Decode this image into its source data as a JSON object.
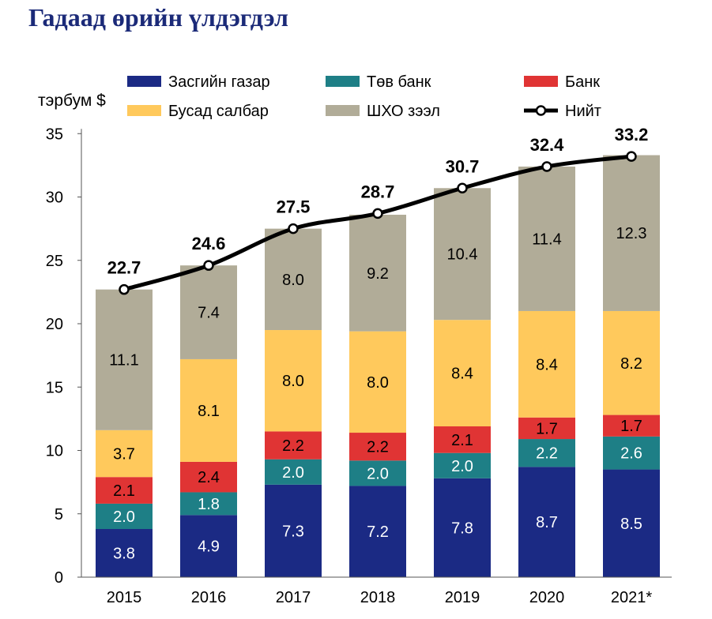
{
  "title": "Гадаад өрийн үлдэгдэл",
  "chart_data": {
    "type": "bar",
    "stacked": true,
    "ylabel": "тэрбум $",
    "ylim": [
      0,
      35
    ],
    "yticks": [
      0,
      5,
      10,
      15,
      20,
      25,
      30,
      35
    ],
    "grid": false,
    "legend_position": "top",
    "categories": [
      "2015",
      "2016",
      "2017",
      "2018",
      "2019",
      "2020",
      "2021*"
    ],
    "series": [
      {
        "name": "Засгийн газар",
        "color": "#1b2a84",
        "text_color": "#ffffff",
        "values": [
          3.8,
          4.9,
          7.3,
          7.2,
          7.8,
          8.7,
          8.5
        ]
      },
      {
        "name": "Төв банк",
        "color": "#1e7f86",
        "text_color": "#ffffff",
        "values": [
          2.0,
          1.8,
          2.0,
          2.0,
          2.0,
          2.2,
          2.6
        ]
      },
      {
        "name": "Банк",
        "color": "#e03434",
        "text_color": "#000000",
        "values": [
          2.1,
          2.4,
          2.2,
          2.2,
          2.1,
          1.7,
          1.7
        ]
      },
      {
        "name": "Бусад салбар",
        "color": "#ffc95c",
        "text_color": "#000000",
        "values": [
          3.7,
          8.1,
          8.0,
          8.0,
          8.4,
          8.4,
          8.2
        ]
      },
      {
        "name": "ШХО зээл",
        "color": "#b1ac98",
        "text_color": "#000000",
        "values": [
          11.1,
          7.4,
          8.0,
          9.2,
          10.4,
          11.4,
          12.3
        ]
      }
    ],
    "line": {
      "name": "Нийт",
      "color": "#000000",
      "values": [
        22.7,
        24.6,
        27.5,
        28.7,
        30.7,
        32.4,
        33.2
      ]
    },
    "value_labels": [
      "3.8",
      "2.0",
      "2.1",
      "3.7",
      "11.1",
      "4.9",
      "1.8",
      "2.4",
      "8.1",
      "7.4",
      "7.3",
      "2.0",
      "2.2",
      "8.0",
      "8.0",
      "7.2",
      "2.0",
      "2.2",
      "8.0",
      "9.2",
      "7.8",
      "2.0",
      "2.1",
      "8.4",
      "10.4",
      "8.7",
      "2.2",
      "1.7",
      "8.4",
      "11.4",
      "8.5",
      "2.6",
      "1.7",
      "8.2",
      "12.3"
    ],
    "line_labels": [
      "22.7",
      "24.6",
      "27.5",
      "28.7",
      "30.7",
      "32.4",
      "33.2"
    ]
  }
}
